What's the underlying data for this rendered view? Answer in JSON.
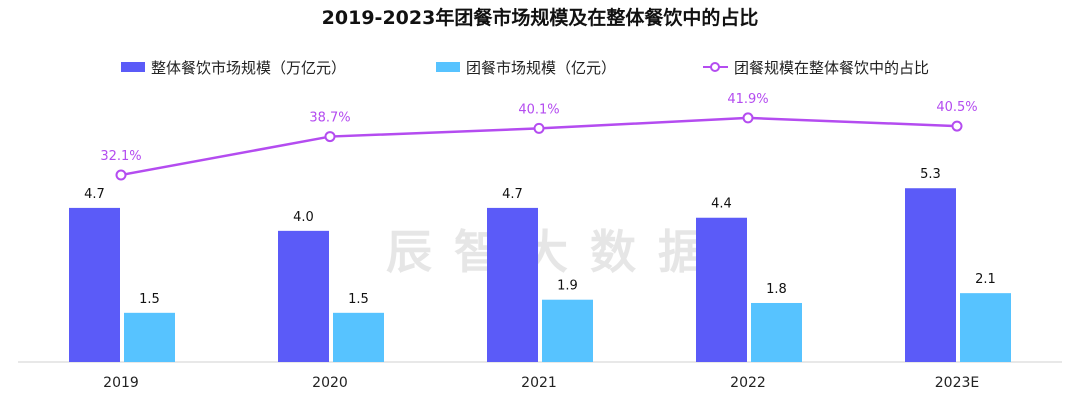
{
  "chart_data": {
    "type": "bar",
    "title": "2019-2023年团餐市场规模及在整体餐饮中的占比",
    "watermark": "辰智大数据",
    "categories": [
      "2019",
      "2020",
      "2021",
      "2022",
      "2023E"
    ],
    "series": [
      {
        "name": "整体餐饮市场规模（万亿元）",
        "type": "bar",
        "axis": "left",
        "color": "#5b5bf8",
        "values": [
          4.7,
          4.0,
          4.7,
          4.4,
          5.3
        ],
        "labels": [
          "4.7",
          "4.0",
          "4.7",
          "4.4",
          "5.3"
        ]
      },
      {
        "name": "团餐市场规模（亿元）",
        "type": "bar",
        "axis": "left",
        "color": "#57c3ff",
        "values": [
          1.5,
          1.5,
          1.9,
          1.8,
          2.1
        ],
        "labels": [
          "1.5",
          "1.5",
          "1.9",
          "1.8",
          "2.1"
        ]
      },
      {
        "name": "团餐规模在整体餐饮中的占比",
        "type": "line",
        "axis": "right",
        "color": "#b44cf0",
        "values": [
          32.1,
          38.7,
          40.1,
          41.9,
          40.5
        ],
        "labels": [
          "32.1%",
          "38.7%",
          "40.1%",
          "41.9%",
          "40.5%"
        ]
      }
    ],
    "legend_position": "top",
    "grid": false,
    "ylim": [
      0,
      9.15
    ],
    "y2lim": [
      0,
      51.5
    ]
  }
}
